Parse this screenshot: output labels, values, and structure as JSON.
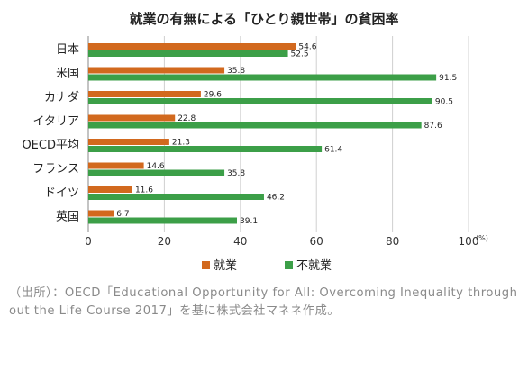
{
  "chart_data": {
    "type": "bar",
    "orientation": "horizontal",
    "title": "就業の有無による「ひとり親世帯」の貧困率",
    "categories": [
      "日本",
      "米国",
      "カナダ",
      "イタリア",
      "OECD平均",
      "フランス",
      "ドイツ",
      "英国"
    ],
    "series": [
      {
        "name": "就業",
        "color": "#d2691e",
        "values": [
          54.6,
          35.8,
          29.6,
          22.8,
          21.3,
          14.6,
          11.6,
          6.7
        ]
      },
      {
        "name": "不就業",
        "color": "#3c9f48",
        "values": [
          52.5,
          91.5,
          90.5,
          87.6,
          61.4,
          35.8,
          46.2,
          39.1
        ]
      }
    ],
    "data_labels": [
      [
        "54.6",
        "35.8",
        "29.6",
        "22.8",
        "21.3",
        "14.6",
        "11.6",
        "6.7"
      ],
      [
        "52.5",
        "91.5",
        "90.5",
        "87.6",
        "61.4",
        "35.8",
        "46.2",
        "39.1"
      ]
    ],
    "x_ticks": [
      "0",
      "20",
      "40",
      "60",
      "80",
      "100"
    ],
    "x_unit": "(%)",
    "xlim": [
      0,
      100
    ],
    "grid": "vertical",
    "legend_position": "bottom"
  },
  "source_note": "（出所）：OECD「Educational Opportunity for All: Overcoming Inequality throughout the Life Course 2017」を基に株式会社マネネ作成。"
}
